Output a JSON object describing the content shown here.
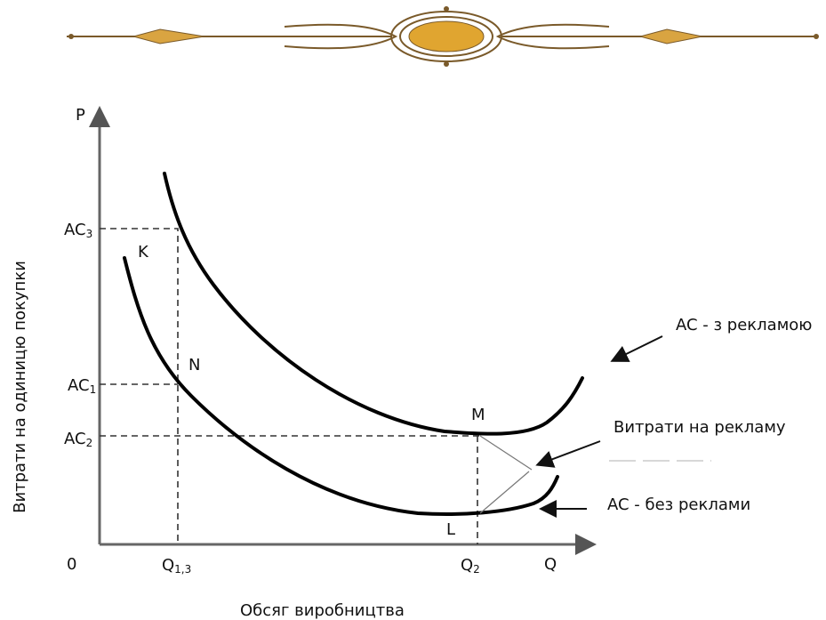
{
  "axes": {
    "y_symbol": "P",
    "x_symbol": "Q",
    "origin": "0",
    "y_title": "Витрати на одиницю покупки",
    "x_title": "Обсяг виробництва"
  },
  "levels": [
    {
      "main": "AC",
      "sub": "3"
    },
    {
      "main": "AC",
      "sub": "1"
    },
    {
      "main": "AC",
      "sub": "2"
    }
  ],
  "quantities": [
    {
      "main": "Q",
      "sub": "1,3"
    },
    {
      "main": "Q",
      "sub": "2"
    }
  ],
  "points": [
    "K",
    "N",
    "M",
    "L"
  ],
  "annotations": [
    "AC - з рекламою",
    "Витрати на рекламу",
    "AC - без реклами"
  ]
}
